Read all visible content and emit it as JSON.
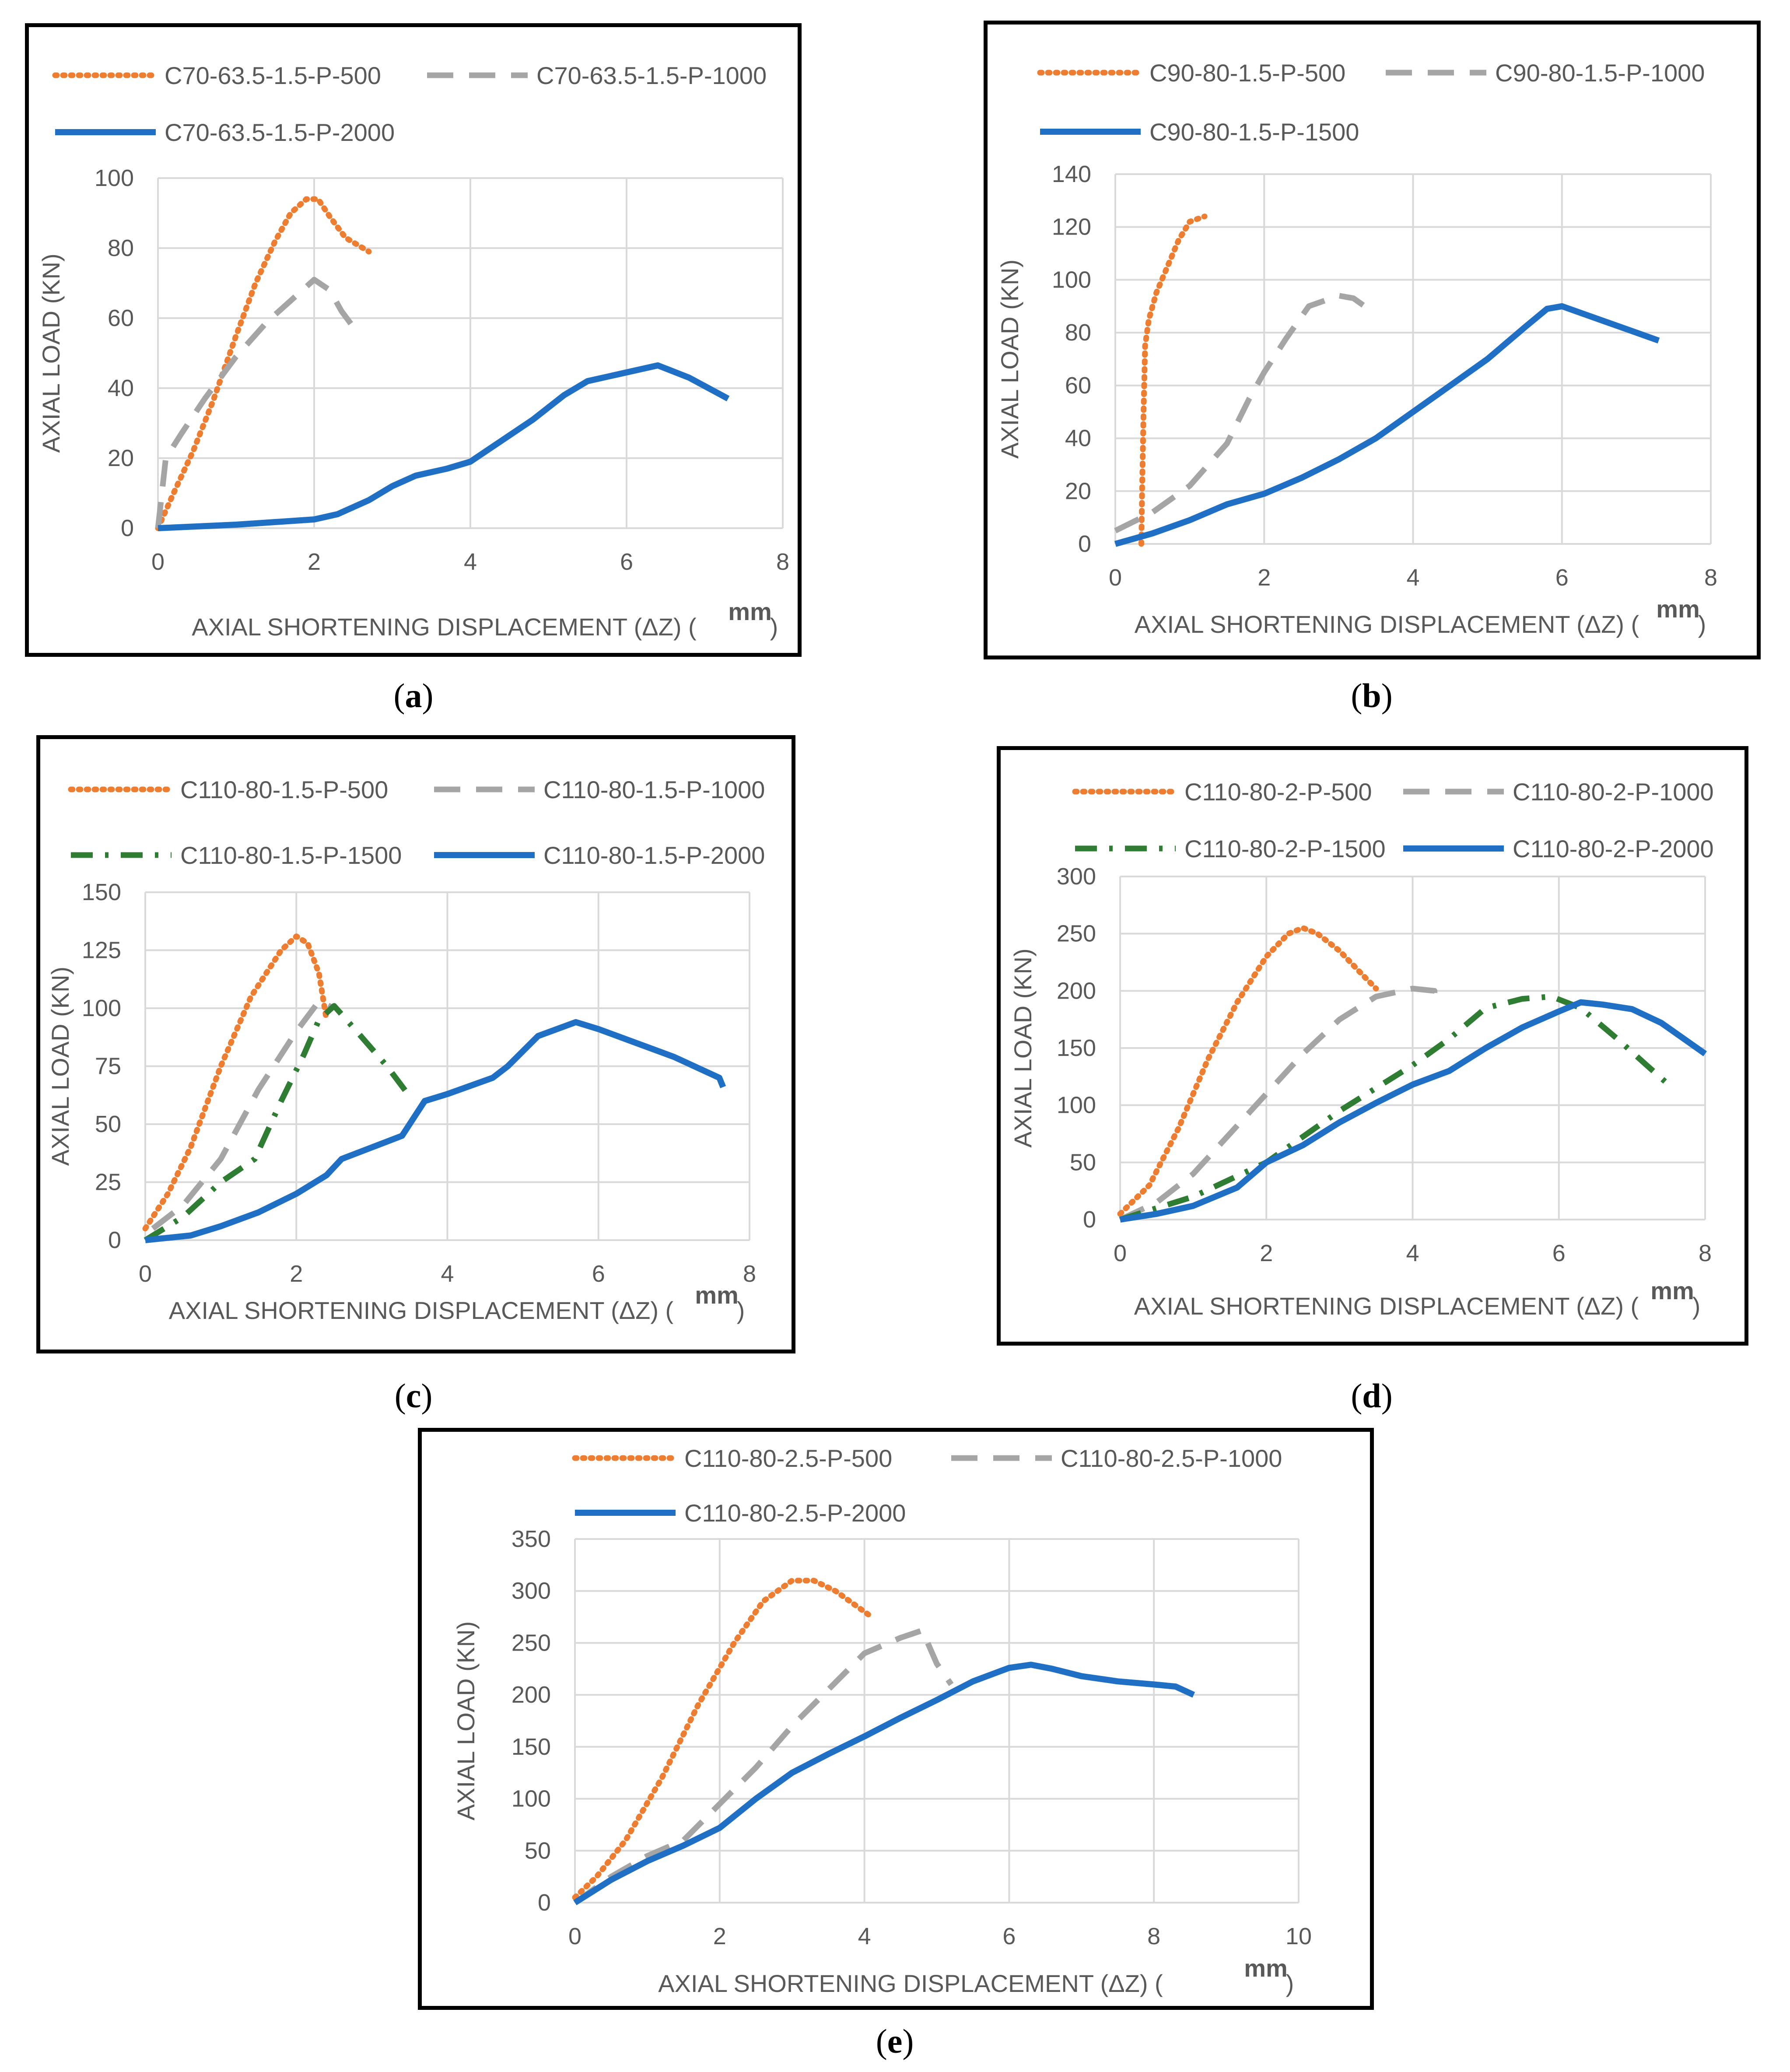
{
  "chart_data": [
    {
      "type": "line",
      "caption_letter": "a",
      "xlabel": "AXIAL SHORTENING DISPLACEMENT (ΔZ)",
      "xunit": "mm",
      "ylabel": "AXIAL LOAD (KN)",
      "xlim": [
        0,
        8
      ],
      "ylim": [
        0,
        100
      ],
      "xticks": [
        "0",
        "2",
        "4",
        "6",
        "8"
      ],
      "yticks": [
        "0",
        "20",
        "40",
        "60",
        "80",
        "100"
      ],
      "grid": true,
      "series": [
        {
          "name": "C70-63.5-1.5-P-500",
          "color": "#ED7D31",
          "dash": "dot",
          "x": [
            0,
            0.2,
            0.45,
            0.7,
            1.0,
            1.25,
            1.5,
            1.7,
            1.9,
            2.05,
            2.2,
            2.4,
            2.7
          ],
          "y": [
            0,
            10,
            22,
            36,
            55,
            70,
            82,
            90,
            94,
            94,
            89,
            83,
            79
          ]
        },
        {
          "name": "C70-63.5-1.5-P-1000",
          "color": "#A5A5A5",
          "dash": "dash",
          "x": [
            0,
            0.1,
            0.3,
            0.6,
            1.0,
            1.4,
            1.7,
            2.0,
            2.2,
            2.35,
            2.55
          ],
          "y": [
            0,
            20,
            27,
            37,
            49,
            59,
            65,
            71,
            68,
            62,
            56
          ]
        },
        {
          "name": "C70-63.5-1.5-P-2000",
          "color": "#1F6FC5",
          "dash": "solid",
          "x": [
            0,
            1.0,
            2.0,
            2.3,
            2.7,
            3.0,
            3.3,
            3.7,
            4.0,
            4.4,
            4.8,
            5.2,
            5.5,
            5.9,
            6.1,
            6.4,
            6.8,
            7.3
          ],
          "y": [
            0,
            1,
            2.5,
            4,
            8,
            12,
            15,
            17,
            19,
            25,
            31,
            38,
            42,
            44,
            45,
            46.5,
            43,
            37
          ]
        }
      ]
    },
    {
      "type": "line",
      "caption_letter": "b",
      "xlabel": "AXIAL SHORTENING DISPLACEMENT (ΔZ)",
      "xunit": "mm",
      "ylabel": "AXIAL LOAD (KN)",
      "xlim": [
        0,
        8
      ],
      "ylim": [
        0,
        140
      ],
      "xticks": [
        "0",
        "2",
        "4",
        "6",
        "8"
      ],
      "yticks": [
        "0",
        "20",
        "40",
        "60",
        "80",
        "100",
        "120",
        "140"
      ],
      "grid": true,
      "series": [
        {
          "name": "C90-80-1.5-P-500",
          "color": "#ED7D31",
          "dash": "dot",
          "x": [
            0.35,
            0.36,
            0.38,
            0.4,
            0.45,
            0.55,
            0.7,
            0.85,
            1.0,
            1.2
          ],
          "y": [
            0,
            20,
            50,
            75,
            85,
            95,
            105,
            115,
            122,
            124
          ]
        },
        {
          "name": "C90-80-1.5-P-1000",
          "color": "#A5A5A5",
          "dash": "dash",
          "x": [
            0,
            0.5,
            1.0,
            1.5,
            1.8,
            2.0,
            2.3,
            2.6,
            3.0,
            3.2,
            3.4
          ],
          "y": [
            5,
            12,
            22,
            38,
            55,
            65,
            78,
            90,
            94,
            93,
            89
          ]
        },
        {
          "name": "C90-80-1.5-P-1500",
          "color": "#1F6FC5",
          "dash": "solid",
          "x": [
            0,
            0.5,
            1.0,
            1.5,
            2.0,
            2.5,
            3.0,
            3.5,
            4.0,
            4.5,
            5.0,
            5.5,
            5.8,
            6.0,
            6.5,
            7.0,
            7.3
          ],
          "y": [
            0,
            4,
            9,
            15,
            19,
            25,
            32,
            40,
            50,
            60,
            70,
            82,
            89,
            90,
            85,
            80,
            77
          ]
        }
      ]
    },
    {
      "type": "line",
      "caption_letter": "c",
      "xlabel": "AXIAL SHORTENING DISPLACEMENT (ΔZ)",
      "xunit": "mm",
      "ylabel": "AXIAL LOAD (KN)",
      "xlim": [
        0,
        8
      ],
      "ylim": [
        0,
        150
      ],
      "xticks": [
        "0",
        "2",
        "4",
        "6",
        "8"
      ],
      "yticks": [
        "0",
        "25",
        "50",
        "75",
        "100",
        "125",
        "150"
      ],
      "grid": true,
      "series": [
        {
          "name": "C110-80-1.5-P-500",
          "color": "#ED7D31",
          "dash": "dot",
          "x": [
            0,
            0.3,
            0.6,
            1.0,
            1.4,
            1.8,
            2.0,
            2.15,
            2.3,
            2.4
          ],
          "y": [
            5,
            20,
            40,
            75,
            105,
            125,
            131,
            128,
            115,
            95
          ]
        },
        {
          "name": "C110-80-1.5-P-1000",
          "color": "#A5A5A5",
          "dash": "dash",
          "x": [
            0.1,
            0.5,
            1.0,
            1.5,
            2.0,
            2.3,
            2.5
          ],
          "y": [
            5,
            15,
            35,
            65,
            90,
            103,
            100
          ]
        },
        {
          "name": "C110-80-1.5-P-1500",
          "color": "#2E7D32",
          "dash": "dashdot",
          "x": [
            0,
            0.5,
            1.0,
            1.45,
            1.8,
            2.1,
            2.3,
            2.5,
            2.8,
            3.2,
            3.5
          ],
          "y": [
            0,
            10,
            25,
            35,
            60,
            80,
            95,
            101,
            90,
            75,
            62
          ]
        },
        {
          "name": "C110-80-1.5-P-2000",
          "color": "#1F6FC5",
          "dash": "solid",
          "x": [
            0,
            0.6,
            1.0,
            1.5,
            2.0,
            2.4,
            2.6,
            3.0,
            3.4,
            3.7,
            4.0,
            4.6,
            4.8,
            5.2,
            5.7,
            6.0,
            6.5,
            7.0,
            7.6,
            7.65
          ],
          "y": [
            0,
            2,
            6,
            12,
            20,
            28,
            35,
            40,
            45,
            60,
            63,
            70,
            75,
            88,
            94,
            91,
            85,
            79,
            70,
            66
          ]
        }
      ]
    },
    {
      "type": "line",
      "caption_letter": "d",
      "xlabel": "AXIAL SHORTENING DISPLACEMENT (ΔZ)",
      "xunit": "mm",
      "ylabel": "AXIAL LOAD (KN)",
      "xlim": [
        0,
        8
      ],
      "ylim": [
        0,
        300
      ],
      "xticks": [
        "0",
        "2",
        "4",
        "6",
        "8"
      ],
      "yticks": [
        "0",
        "50",
        "100",
        "150",
        "200",
        "250",
        "300"
      ],
      "grid": true,
      "series": [
        {
          "name": "C110-80-2-P-500",
          "color": "#ED7D31",
          "dash": "dot",
          "x": [
            0,
            0.4,
            0.8,
            1.2,
            1.6,
            2.0,
            2.3,
            2.5,
            2.7,
            3.0,
            3.3,
            3.5
          ],
          "y": [
            5,
            30,
            80,
            140,
            190,
            230,
            250,
            255,
            250,
            235,
            215,
            202
          ]
        },
        {
          "name": "C110-80-2-P-1000",
          "color": "#A5A5A5",
          "dash": "dash",
          "x": [
            0,
            0.5,
            1.0,
            1.5,
            2.0,
            2.5,
            3.0,
            3.5,
            4.0,
            4.3,
            4.3
          ],
          "y": [
            0,
            15,
            40,
            75,
            110,
            145,
            175,
            195,
            202,
            200,
            185
          ]
        },
        {
          "name": "C110-80-2-P-1500",
          "color": "#2E7D32",
          "dash": "dashdot",
          "x": [
            0,
            1.0,
            2.0,
            3.0,
            4.0,
            4.5,
            5.0,
            5.5,
            5.9,
            6.3,
            6.8,
            7.2,
            7.5
          ],
          "y": [
            0,
            20,
            50,
            95,
            135,
            158,
            185,
            193,
            195,
            185,
            158,
            135,
            118
          ]
        },
        {
          "name": "C110-80-2-P-2000",
          "color": "#1F6FC5",
          "dash": "solid",
          "x": [
            0,
            0.5,
            1.0,
            1.6,
            2.0,
            2.5,
            3.0,
            3.5,
            4.0,
            4.5,
            5.0,
            5.5,
            6.0,
            6.3,
            6.6,
            7.0,
            7.4,
            8.0
          ],
          "y": [
            0,
            5,
            12,
            28,
            50,
            65,
            85,
            102,
            118,
            130,
            150,
            168,
            182,
            190,
            188,
            184,
            172,
            145
          ]
        }
      ]
    },
    {
      "type": "line",
      "caption_letter": "e",
      "xlabel": "AXIAL SHORTENING DISPLACEMENT (ΔZ)",
      "xunit": "mm",
      "ylabel": "AXIAL LOAD (KN)",
      "xlim": [
        0,
        10
      ],
      "ylim": [
        0,
        350
      ],
      "xticks": [
        "0",
        "2",
        "4",
        "6",
        "8",
        "10"
      ],
      "yticks": [
        "0",
        "50",
        "100",
        "150",
        "200",
        "250",
        "300",
        "350"
      ],
      "grid": true,
      "series": [
        {
          "name": "C110-80-2.5-P-500",
          "color": "#ED7D31",
          "dash": "dot",
          "x": [
            0,
            0.3,
            0.7,
            1.2,
            1.7,
            2.2,
            2.6,
            3.0,
            3.3,
            3.6,
            3.9,
            4.1
          ],
          "y": [
            5,
            25,
            60,
            120,
            190,
            250,
            290,
            310,
            310,
            300,
            285,
            275
          ]
        },
        {
          "name": "C110-80-2.5-P-1000",
          "color": "#A5A5A5",
          "dash": "dash",
          "x": [
            0,
            0.5,
            1.0,
            1.5,
            2.0,
            2.5,
            3.0,
            3.5,
            4.0,
            4.5,
            4.8,
            5.0,
            5.2
          ],
          "y": [
            0,
            25,
            45,
            60,
            95,
            130,
            170,
            205,
            240,
            255,
            262,
            230,
            210
          ]
        },
        {
          "name": "C110-80-2.5-P-2000",
          "color": "#1F6FC5",
          "dash": "solid",
          "x": [
            0,
            0.5,
            1.0,
            1.5,
            2.0,
            2.5,
            3.0,
            3.5,
            4.0,
            4.5,
            5.0,
            5.5,
            6.0,
            6.3,
            6.6,
            7.0,
            7.5,
            8.0,
            8.3,
            8.55
          ],
          "y": [
            0,
            22,
            40,
            55,
            72,
            100,
            125,
            143,
            160,
            178,
            195,
            213,
            226,
            229,
            225,
            218,
            213,
            210,
            208,
            200
          ]
        }
      ]
    }
  ]
}
